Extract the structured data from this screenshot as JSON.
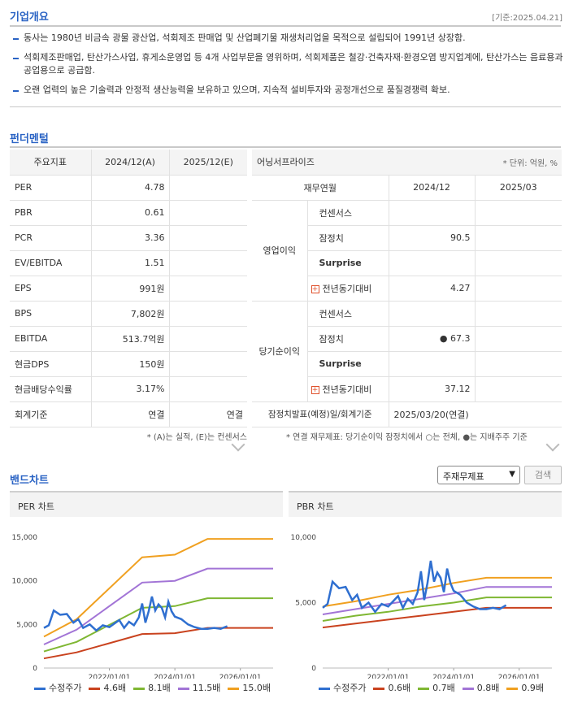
{
  "overview": {
    "title": "기업개요",
    "date": "[기준:2025.04.21]",
    "lines": [
      "동사는 1980년 비금속 광물 광산업, 석회제조 판매업 및 산업폐기물 재생처리업을 목적으로 설립되어 1991년 상장함.",
      "석회제조판매업, 탄산가스사업, 휴게소운영업 등 4개 사업부문을 영위하며, 석회제품은 철강·건축자재·환경오염 방지업계에, 탄산가스는 음료용과 공업용으로 공급함.",
      "오랜 업력의 높은 기술력과 안정적 생산능력을 보유하고 있으며, 지속적 설비투자와 공정개선으로 품질경쟁력 확보."
    ]
  },
  "fundamental": {
    "title": "펀더멘털",
    "headers": [
      "주요지표",
      "2024/12(A)",
      "2025/12(E)"
    ],
    "rows": [
      {
        "label": "PER",
        "v1": "4.78",
        "v2": ""
      },
      {
        "label": "PBR",
        "v1": "0.61",
        "v2": ""
      },
      {
        "label": "PCR",
        "v1": "3.36",
        "v2": ""
      },
      {
        "label": "EV/EBITDA",
        "v1": "1.51",
        "v2": ""
      },
      {
        "label": "EPS",
        "v1": "991원",
        "v2": ""
      },
      {
        "label": "BPS",
        "v1": "7,802원",
        "v2": ""
      },
      {
        "label": "EBITDA",
        "v1": "513.7억원",
        "v2": ""
      },
      {
        "label": "현금DPS",
        "v1": "150원",
        "v2": ""
      },
      {
        "label": "현금배당수익률",
        "v1": "3.17%",
        "v2": ""
      },
      {
        "label": "회계기준",
        "v1": "연결",
        "v2": "연결"
      }
    ],
    "note": "* (A)는 실적, (E)는 컨센서스"
  },
  "earnings": {
    "title": "어닝서프라이즈",
    "unit": "* 단위: 억원, %",
    "headers": [
      "재무연월",
      "2024/12",
      "2025/03"
    ],
    "groups": [
      {
        "name": "영업이익",
        "rows": [
          {
            "label": "컨센서스",
            "v1": "",
            "v2": ""
          },
          {
            "label": "잠정치",
            "v1": "90.5",
            "v2": ""
          },
          {
            "label": "Surprise",
            "v1": "",
            "v2": ""
          },
          {
            "label": "전년동기대비",
            "v1": "4.27",
            "v2": ""
          }
        ]
      },
      {
        "name": "당기순이익",
        "rows": [
          {
            "label": "컨센서스",
            "v1": "",
            "v2": ""
          },
          {
            "label": "잠정치",
            "v1": "● 67.3",
            "v2": ""
          },
          {
            "label": "Surprise",
            "v1": "",
            "v2": ""
          },
          {
            "label": "전년동기대비",
            "v1": "37.12",
            "v2": ""
          }
        ]
      }
    ],
    "footer_label": "잠정치발표(예정)일/회계기준",
    "footer_value": "2025/03/20(연결)",
    "note": "* 연결 재무제표: 당기순이익 잠정치에서 ○는 전체, ●는 지배주주 기준"
  },
  "band": {
    "title": "밴드차트",
    "select_value": "주재무제표",
    "search_label": "검색"
  },
  "chart_data": [
    {
      "type": "line",
      "title": "PER 차트",
      "xticks": [
        "2022/01/01",
        "2024/01/01",
        "2026/01/01"
      ],
      "yticks": [
        "15,000",
        "10,000",
        "5,000",
        "0"
      ],
      "ylim": [
        0,
        15000
      ],
      "series": [
        {
          "name": "수정주가",
          "color": "#2f6fd0",
          "x": [
            2020.0,
            2020.15,
            2020.3,
            2020.5,
            2020.7,
            2020.9,
            2021.05,
            2021.2,
            2021.4,
            2021.6,
            2021.8,
            2022.0,
            2022.15,
            2022.3,
            2022.45,
            2022.6,
            2022.75,
            2022.9,
            2023.0,
            2023.1,
            2023.2,
            2023.3,
            2023.4,
            2023.5,
            2023.6,
            2023.7,
            2023.8,
            2023.9,
            2024.0,
            2024.2,
            2024.4,
            2024.6,
            2024.8,
            2025.0,
            2025.2,
            2025.4,
            2025.6
          ],
          "y": [
            4600,
            4900,
            6600,
            6100,
            6200,
            5200,
            5600,
            4600,
            5000,
            4300,
            4900,
            4700,
            5100,
            5500,
            4600,
            5300,
            4900,
            5800,
            7400,
            5200,
            6500,
            8200,
            6600,
            7300,
            6900,
            5800,
            7600,
            6500,
            5900,
            5600,
            5000,
            4700,
            4500,
            4500,
            4600,
            4500,
            4800
          ]
        },
        {
          "name": "4.6배",
          "color": "#c9421e",
          "x": [
            2020.0,
            2021.0,
            2023.0,
            2024.0,
            2025.0,
            2027.0
          ],
          "y": [
            1100,
            1800,
            3900,
            4000,
            4600,
            4600
          ]
        },
        {
          "name": "8.1배",
          "color": "#7fb733",
          "x": [
            2020.0,
            2021.0,
            2023.0,
            2024.0,
            2025.0,
            2027.0
          ],
          "y": [
            1900,
            3000,
            6900,
            7100,
            8000,
            8000
          ]
        },
        {
          "name": "11.5배",
          "color": "#a274d6",
          "x": [
            2020.0,
            2021.0,
            2023.0,
            2024.0,
            2025.0,
            2027.0
          ],
          "y": [
            2700,
            4400,
            9800,
            10000,
            11400,
            11400
          ]
        },
        {
          "name": "15.0배",
          "color": "#f0a020",
          "x": [
            2020.0,
            2021.0,
            2023.0,
            2024.0,
            2025.0,
            2027.0
          ],
          "y": [
            3600,
            5600,
            12700,
            13000,
            14800,
            14800
          ]
        }
      ]
    },
    {
      "type": "line",
      "title": "PBR 차트",
      "xticks": [
        "2022/01/01",
        "2024/01/01",
        "2026/01/01"
      ],
      "yticks": [
        "10,000",
        "5,000",
        "0"
      ],
      "ylim": [
        0,
        10000
      ],
      "series": [
        {
          "name": "수정주가",
          "color": "#2f6fd0",
          "x": [
            2020.0,
            2020.15,
            2020.3,
            2020.5,
            2020.7,
            2020.9,
            2021.05,
            2021.2,
            2021.4,
            2021.6,
            2021.8,
            2022.0,
            2022.15,
            2022.3,
            2022.45,
            2022.6,
            2022.75,
            2022.9,
            2023.0,
            2023.1,
            2023.2,
            2023.3,
            2023.4,
            2023.5,
            2023.6,
            2023.7,
            2023.8,
            2023.9,
            2024.0,
            2024.2,
            2024.4,
            2024.6,
            2024.8,
            2025.0,
            2025.2,
            2025.4,
            2025.6
          ],
          "y": [
            4600,
            4900,
            6600,
            6100,
            6200,
            5200,
            5600,
            4600,
            5000,
            4300,
            4900,
            4700,
            5100,
            5500,
            4600,
            5300,
            4900,
            5800,
            7400,
            5200,
            6500,
            8200,
            6600,
            7300,
            6900,
            5800,
            7600,
            6500,
            5900,
            5600,
            5000,
            4700,
            4500,
            4500,
            4600,
            4500,
            4800
          ]
        },
        {
          "name": "0.6배",
          "color": "#c9421e",
          "x": [
            2020.0,
            2021.0,
            2022.0,
            2023.0,
            2024.0,
            2025.0,
            2027.0
          ],
          "y": [
            3100,
            3400,
            3700,
            4000,
            4300,
            4600,
            4600
          ]
        },
        {
          "name": "0.7배",
          "color": "#7fb733",
          "x": [
            2020.0,
            2021.0,
            2022.0,
            2023.0,
            2024.0,
            2025.0,
            2027.0
          ],
          "y": [
            3600,
            4000,
            4300,
            4700,
            5000,
            5400,
            5400
          ]
        },
        {
          "name": "0.8배",
          "color": "#a274d6",
          "x": [
            2020.0,
            2021.0,
            2022.0,
            2023.0,
            2024.0,
            2025.0,
            2027.0
          ],
          "y": [
            4100,
            4500,
            4900,
            5300,
            5700,
            6200,
            6200
          ]
        },
        {
          "name": "0.9배",
          "color": "#f0a020",
          "x": [
            2020.0,
            2021.0,
            2022.0,
            2023.0,
            2024.0,
            2025.0,
            2027.0
          ],
          "y": [
            4700,
            5100,
            5600,
            6000,
            6500,
            6900,
            6900
          ]
        }
      ]
    }
  ]
}
